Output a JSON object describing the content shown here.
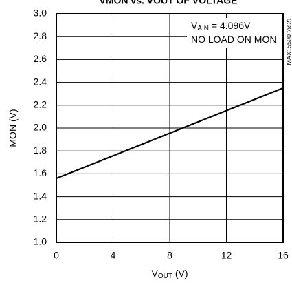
{
  "chart_data": {
    "type": "line",
    "title": "VMON vs. VOUT OF VOLTAGE",
    "x_label": {
      "main": "V",
      "sub": "OUT",
      "rest": " (V)"
    },
    "y_label": "MON (V)",
    "annotations": [
      {
        "main": "V",
        "sub": "AIN",
        "rest": " = 4.096V"
      },
      {
        "main": "NO LOAD ON MON"
      }
    ],
    "side_note": "MAX15500 toc21",
    "x": [
      0,
      16
    ],
    "series": [
      {
        "color": "#000000",
        "values": [
          1.56,
          2.35
        ]
      }
    ],
    "xlim": [
      0,
      16
    ],
    "xticks": [
      0,
      4,
      8,
      12,
      16
    ],
    "ylim": [
      1.0,
      3.0
    ],
    "yticks": [
      {
        "value": 1.0,
        "label": "1.0"
      },
      1.2,
      1.4,
      1.6,
      1.8,
      {
        "value": 2.0,
        "label": "2.0"
      },
      2.2,
      2.4,
      2.6,
      2.8,
      {
        "value": 3.0,
        "label": "3.0"
      }
    ],
    "grid": true
  }
}
